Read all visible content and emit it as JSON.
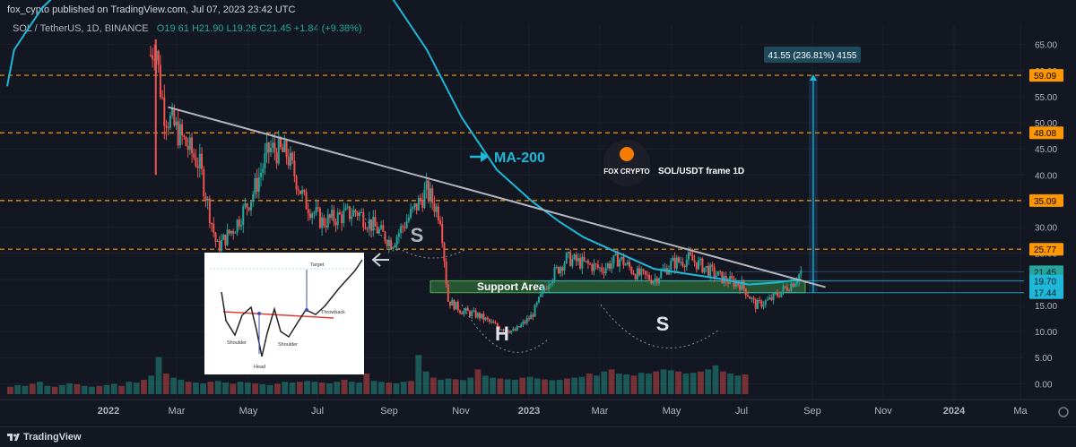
{
  "header": {
    "publish_line": "fox_cypto published on TradingView.com, Jul 07, 2023 23:42 UTC",
    "clipped_title": "SOL/USDT frame 1D"
  },
  "symbol": {
    "pair": "SOL / TetherUS, 1D, BINANCE",
    "open": "O19.61",
    "high": "H21.90",
    "low": "L19.26",
    "close": "C21.45",
    "change": "+1.84 (+9.38%)"
  },
  "footer": {
    "brand": "TradingView"
  },
  "colors": {
    "background": "#131722",
    "up": "#26a69a",
    "down": "#ef5350",
    "ma": "#1eb8d8",
    "level": "#ff9800",
    "trendline": "#b2b5be",
    "support": "#2e6b3a"
  },
  "chart_data": {
    "type": "candlestick",
    "x_axis_ticks": [
      "2022",
      "Mar",
      "May",
      "Jul",
      "Sep",
      "Nov",
      "2023",
      "Mar",
      "May",
      "Jul",
      "Sep",
      "Nov",
      "2024",
      "Ma"
    ],
    "y_axis_ticks": [
      "0.00",
      "5.00",
      "10.00",
      "15.00",
      "20.00",
      "25.00",
      "30.00",
      "35.00",
      "40.00",
      "45.00",
      "50.00",
      "55.00",
      "60.00",
      "65.00"
    ],
    "ylim": [
      -2,
      67
    ],
    "price_series": [
      {
        "t": 0.0,
        "p": 60
      },
      {
        "t": 0.5,
        "p": 62
      },
      {
        "t": 1.0,
        "p": 63
      },
      {
        "t": 4.1,
        "p": 63
      },
      {
        "t": 4.25,
        "p": 66
      },
      {
        "t": 4.35,
        "p": 58
      },
      {
        "t": 4.5,
        "p": 52
      },
      {
        "t": 5.0,
        "p": 47
      },
      {
        "t": 5.5,
        "p": 42
      },
      {
        "t": 6.0,
        "p": 26
      },
      {
        "t": 6.5,
        "p": 30
      },
      {
        "t": 7.0,
        "p": 36
      },
      {
        "t": 7.5,
        "p": 45
      },
      {
        "t": 8.0,
        "p": 44
      },
      {
        "t": 8.5,
        "p": 35
      },
      {
        "t": 9.0,
        "p": 31
      },
      {
        "t": 10.0,
        "p": 33
      },
      {
        "t": 10.5,
        "p": 30
      },
      {
        "t": 11.0,
        "p": 27
      },
      {
        "t": 12.0,
        "p": 37
      },
      {
        "t": 12.4,
        "p": 32
      },
      {
        "t": 12.6,
        "p": 16
      },
      {
        "t": 13.0,
        "p": 14
      },
      {
        "t": 13.5,
        "p": 13
      },
      {
        "t": 14.0,
        "p": 11
      },
      {
        "t": 14.5,
        "p": 10
      },
      {
        "t": 15.0,
        "p": 13
      },
      {
        "t": 15.5,
        "p": 20
      },
      {
        "t": 16.0,
        "p": 24
      },
      {
        "t": 17.0,
        "p": 22
      },
      {
        "t": 17.5,
        "p": 24
      },
      {
        "t": 18.0,
        "p": 21
      },
      {
        "t": 18.5,
        "p": 20
      },
      {
        "t": 19.0,
        "p": 23
      },
      {
        "t": 19.5,
        "p": 24
      },
      {
        "t": 20.0,
        "p": 22
      },
      {
        "t": 20.5,
        "p": 20
      },
      {
        "t": 21.0,
        "p": 19
      },
      {
        "t": 21.4,
        "p": 15
      },
      {
        "t": 21.8,
        "p": 16
      },
      {
        "t": 22.2,
        "p": 18
      },
      {
        "t": 22.5,
        "p": 19.6
      },
      {
        "t": 22.7,
        "p": 21.45
      }
    ],
    "ma_200": [
      {
        "t": 0.0,
        "p": 57
      },
      {
        "t": 0.2,
        "p": 64
      },
      {
        "t": 1.0,
        "p": 72
      },
      {
        "t": 3.0,
        "p": 85
      },
      {
        "t": 8.0,
        "p": 90
      },
      {
        "t": 11.0,
        "p": 74
      },
      {
        "t": 12.0,
        "p": 64
      },
      {
        "t": 13.0,
        "p": 51
      },
      {
        "t": 14.0,
        "p": 41
      },
      {
        "t": 15.0,
        "p": 35
      },
      {
        "t": 15.8,
        "p": 31
      },
      {
        "t": 16.5,
        "p": 28
      },
      {
        "t": 17.5,
        "p": 25
      },
      {
        "t": 18.5,
        "p": 22
      },
      {
        "t": 19.5,
        "p": 21
      },
      {
        "t": 20.5,
        "p": 20
      },
      {
        "t": 21.2,
        "p": 19
      },
      {
        "t": 22.0,
        "p": 19.4
      },
      {
        "t": 22.7,
        "p": 20
      }
    ],
    "horizontal_levels": [
      59.09,
      48.08,
      35.09,
      25.77
    ],
    "price_labels": [
      {
        "value": 59.09,
        "text": "59.09",
        "color": "#ff9800"
      },
      {
        "value": 48.08,
        "text": "48.08",
        "color": "#ff9800"
      },
      {
        "value": 35.09,
        "text": "35.09",
        "color": "#ff9800"
      },
      {
        "value": 25.77,
        "text": "25.77",
        "color": "#ff9800"
      },
      {
        "value": 21.45,
        "text": "21.45",
        "color": "#26a69a"
      },
      {
        "value": 19.7,
        "text": "19.70",
        "color": "#1eb8d8"
      },
      {
        "value": 17.44,
        "text": "17.44",
        "color": "#1eb8d8"
      }
    ],
    "trendline": {
      "start": {
        "t": 4.6,
        "p": 53
      },
      "end": {
        "t": 23.4,
        "p": 18.5
      }
    },
    "support_zone": {
      "low": 17.44,
      "high": 19.7,
      "label": "Support Area"
    },
    "measure": {
      "from": 17.44,
      "to": 59.09,
      "label": "41.55 (236.81%) 4155"
    },
    "annotations": {
      "ma_label": "MA-200",
      "brand": "FOX CRYPTO",
      "chart_title": "SOL/USDT frame 1D",
      "left_shoulder": "S",
      "head": "H",
      "right_shoulder": "S"
    },
    "inset_pattern": {
      "target_label": "Target",
      "throwback_label": "Throwback",
      "left_shoulder_label": "Shoulder",
      "right_shoulder_label": "Shoulder",
      "head_label": "Head"
    },
    "volume": [
      0.18,
      0.22,
      0.2,
      0.25,
      0.3,
      0.2,
      0.18,
      0.22,
      0.26,
      0.24,
      0.2,
      0.18,
      0.2,
      0.22,
      0.25,
      0.2,
      0.3,
      0.28,
      0.35,
      0.45,
      0.9,
      0.5,
      0.4,
      0.35,
      0.3,
      0.28,
      0.26,
      0.3,
      0.32,
      0.28,
      0.25,
      0.3,
      0.28,
      0.26,
      0.24,
      0.22,
      0.25,
      0.3,
      0.28,
      0.3,
      0.32,
      0.3,
      0.28,
      0.26,
      0.3,
      0.35,
      0.3,
      0.28,
      0.5,
      0.32,
      0.3,
      0.28,
      0.26,
      0.3,
      0.32,
      0.95,
      0.55,
      0.4,
      0.35,
      0.38,
      0.36,
      0.34,
      0.4,
      0.6,
      0.45,
      0.4,
      0.38,
      0.36,
      0.35,
      0.4,
      0.42,
      0.38,
      0.36,
      0.34,
      0.35,
      0.38,
      0.4,
      0.42,
      0.5,
      0.45,
      0.55,
      0.6,
      0.5,
      0.48,
      0.45,
      0.52,
      0.5,
      0.55,
      0.6,
      0.58,
      0.55,
      0.5,
      0.52,
      0.55,
      0.6,
      0.7,
      0.55,
      0.5,
      0.45,
      0.48
    ]
  }
}
